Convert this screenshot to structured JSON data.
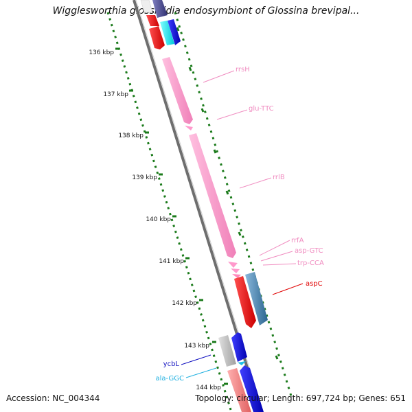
{
  "title": "Wigglesworthia glossinidia endosymbiont of Glossina brevipal...",
  "footer": {
    "accession": "Accession: NC_004344",
    "topology": "Topology: circular; Length: 697,724 bp; Genes: 651"
  },
  "ticks": [
    "136 kbp",
    "137 kbp",
    "138 kbp",
    "139 kbp",
    "140 kbp",
    "141 kbp",
    "142 kbp",
    "143 kbp",
    "144 kbp"
  ],
  "gene_labels": [
    {
      "text": "rrsH",
      "color": "#f08cc0"
    },
    {
      "text": "glu-TTC",
      "color": "#f08cc0"
    },
    {
      "text": "rrlB",
      "color": "#f08cc0"
    },
    {
      "text": "rrfA",
      "color": "#f08cc0"
    },
    {
      "text": "asp-GTC",
      "color": "#f08cc0"
    },
    {
      "text": "trp-CCA",
      "color": "#f08cc0"
    },
    {
      "text": "aspC",
      "color": "#e00000"
    },
    {
      "text": "ycbL",
      "color": "#1010c0"
    },
    {
      "text": "ala-GGC",
      "color": "#20b0e0"
    }
  ],
  "colors": {
    "rrna": "#ff99cc",
    "trna": "#ff99cc",
    "cds_red": "#ee0000",
    "cds_blue": "#4682b4",
    "cds_darkblue": "#0000ee",
    "cds_gray": "#b8b8b8",
    "backbone": "#808080",
    "ruler": "#1a7a1a"
  }
}
